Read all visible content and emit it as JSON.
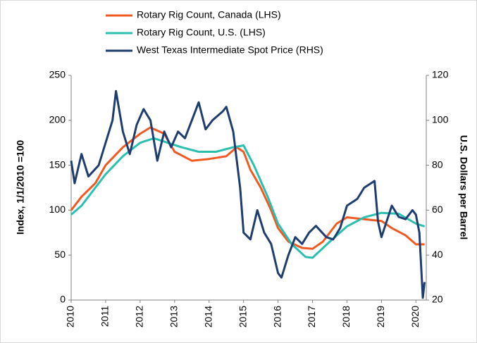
{
  "chart_data": {
    "type": "line",
    "y_label": "Index, 1/1/2010 =100",
    "y2_label": "U.S. Dollars per Barrel",
    "xlim": [
      2010,
      2020.3
    ],
    "xticks": [
      2010,
      2011,
      2012,
      2013,
      2014,
      2015,
      2016,
      2017,
      2018,
      2019,
      2020
    ],
    "ylim": [
      0,
      250
    ],
    "yticks": [
      0,
      50,
      100,
      150,
      200,
      250
    ],
    "y2lim": [
      20,
      120
    ],
    "y2ticks": [
      20,
      40,
      60,
      80,
      100,
      120
    ],
    "grid": false,
    "legend": "top",
    "series": [
      {
        "name": "Rotary Rig Count, Canada (LHS)",
        "color": "#f05a22",
        "x": [
          2010,
          2010.3,
          2010.7,
          2011,
          2011.5,
          2012,
          2012.3,
          2012.7,
          2013,
          2013.5,
          2014,
          2014.5,
          2014.8,
          2015,
          2015.2,
          2015.5,
          2015.8,
          2016,
          2016.3,
          2016.7,
          2017,
          2017.3,
          2017.7,
          2018,
          2018.5,
          2019,
          2019.3,
          2019.7,
          2020,
          2020.25
        ],
        "values": [
          100,
          115,
          130,
          150,
          170,
          185,
          192,
          185,
          165,
          155,
          157,
          160,
          170,
          165,
          145,
          125,
          100,
          80,
          65,
          58,
          57,
          65,
          85,
          92,
          90,
          88,
          80,
          72,
          62,
          62
        ]
      },
      {
        "name": "Rotary Rig Count, U.S. (LHS)",
        "color": "#2bbfb0",
        "x": [
          2010,
          2010.3,
          2010.7,
          2011,
          2011.5,
          2012,
          2012.4,
          2012.8,
          2013.2,
          2013.7,
          2014.2,
          2014.7,
          2015,
          2015.3,
          2015.7,
          2016,
          2016.4,
          2016.8,
          2017,
          2017.5,
          2018,
          2018.5,
          2019,
          2019.5,
          2020,
          2020.25
        ],
        "values": [
          95,
          105,
          125,
          140,
          160,
          175,
          180,
          175,
          170,
          165,
          165,
          170,
          172,
          150,
          115,
          85,
          62,
          48,
          47,
          65,
          82,
          92,
          97,
          96,
          85,
          82
        ]
      },
      {
        "name": "West Texas Intermediate Spot Price (RHS)",
        "color": "#1f3d6e",
        "axis": "y2",
        "x": [
          2010,
          2010.1,
          2010.3,
          2010.5,
          2010.8,
          2011,
          2011.2,
          2011.3,
          2011.5,
          2011.7,
          2011.9,
          2012.1,
          2012.3,
          2012.5,
          2012.7,
          2012.9,
          2013.1,
          2013.3,
          2013.5,
          2013.7,
          2013.9,
          2014.1,
          2014.4,
          2014.5,
          2014.7,
          2014.9,
          2015,
          2015.2,
          2015.4,
          2015.6,
          2015.8,
          2016,
          2016.1,
          2016.3,
          2016.5,
          2016.7,
          2016.9,
          2017.1,
          2017.4,
          2017.6,
          2017.8,
          2018,
          2018.3,
          2018.5,
          2018.8,
          2018.9,
          2019,
          2019.3,
          2019.5,
          2019.7,
          2019.9,
          2020,
          2020.1,
          2020.2,
          2020.25
        ],
        "values": [
          82,
          72,
          85,
          75,
          80,
          90,
          100,
          113,
          95,
          85,
          98,
          105,
          100,
          82,
          95,
          88,
          95,
          92,
          100,
          108,
          96,
          100,
          104,
          106,
          95,
          70,
          50,
          47,
          60,
          50,
          45,
          32,
          30,
          40,
          48,
          45,
          50,
          53,
          48,
          47,
          52,
          62,
          65,
          70,
          73,
          55,
          48,
          62,
          57,
          56,
          60,
          58,
          50,
          21,
          28
        ]
      }
    ]
  }
}
